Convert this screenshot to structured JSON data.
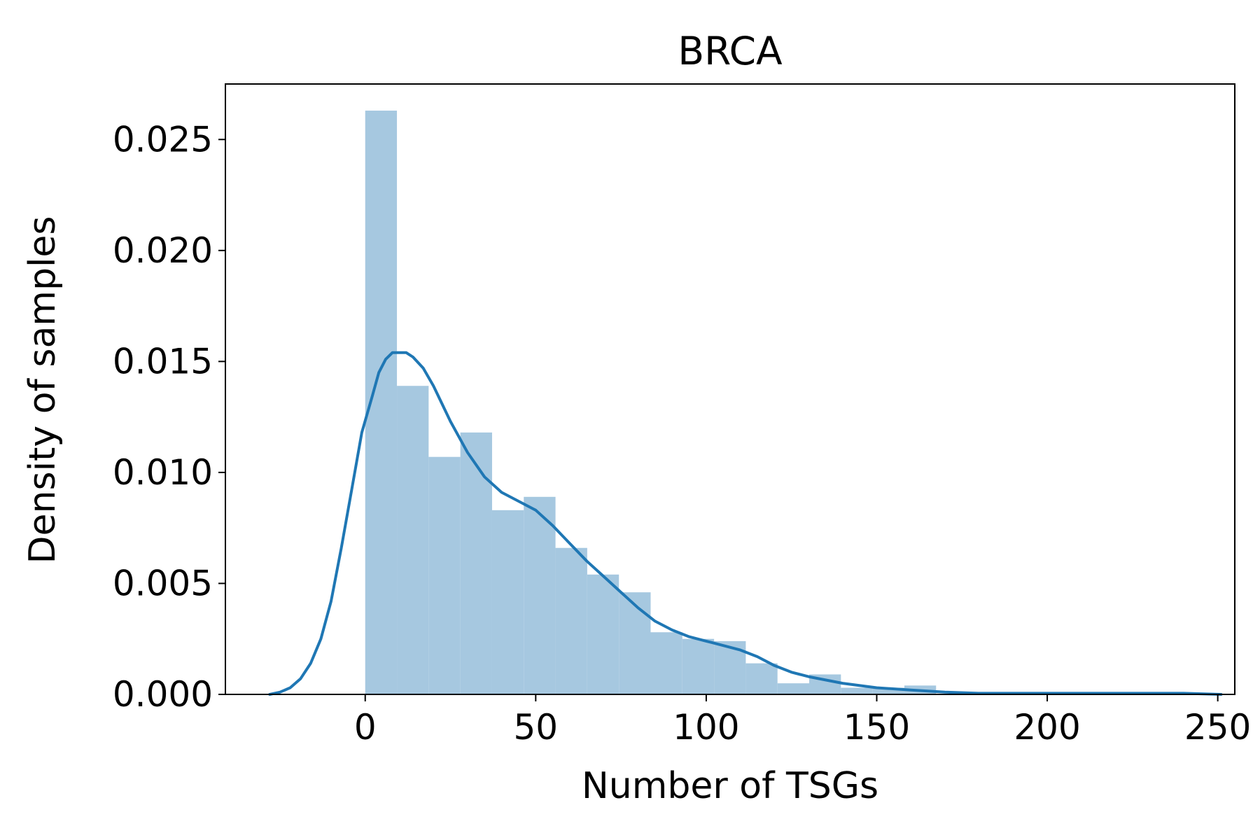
{
  "chart_data": {
    "type": "bar",
    "title": "BRCA",
    "xlabel": "Number of TSGs",
    "ylabel": "Density of samples",
    "xlim": [
      -41,
      255
    ],
    "ylim": [
      0,
      0.0275
    ],
    "x_ticks": [
      0,
      50,
      100,
      150,
      200,
      250
    ],
    "x_tick_labels": [
      "0",
      "50",
      "100",
      "150",
      "200",
      "250"
    ],
    "y_ticks": [
      0,
      0.005,
      0.01,
      0.015,
      0.02,
      0.025
    ],
    "y_tick_labels": [
      "0.000",
      "0.005",
      "0.010",
      "0.015",
      "0.020",
      "0.025"
    ],
    "grid": false,
    "histogram": {
      "name": "histogram",
      "color": "#a6c8e0",
      "bins": [
        {
          "x0": 0.0,
          "x1": 9.3,
          "value": 0.0263
        },
        {
          "x0": 9.3,
          "x1": 18.6,
          "value": 0.0139
        },
        {
          "x0": 18.6,
          "x1": 27.9,
          "value": 0.0107
        },
        {
          "x0": 27.9,
          "x1": 37.2,
          "value": 0.0118
        },
        {
          "x0": 37.2,
          "x1": 46.5,
          "value": 0.0083
        },
        {
          "x0": 46.5,
          "x1": 55.8,
          "value": 0.0089
        },
        {
          "x0": 55.8,
          "x1": 65.1,
          "value": 0.0066
        },
        {
          "x0": 65.1,
          "x1": 74.4,
          "value": 0.0054
        },
        {
          "x0": 74.4,
          "x1": 83.7,
          "value": 0.0046
        },
        {
          "x0": 83.7,
          "x1": 93.0,
          "value": 0.0028
        },
        {
          "x0": 93.0,
          "x1": 102.3,
          "value": 0.0025
        },
        {
          "x0": 102.3,
          "x1": 111.6,
          "value": 0.0024
        },
        {
          "x0": 111.6,
          "x1": 120.9,
          "value": 0.0014
        },
        {
          "x0": 120.9,
          "x1": 130.2,
          "value": 0.0005
        },
        {
          "x0": 130.2,
          "x1": 139.5,
          "value": 0.0009
        },
        {
          "x0": 139.5,
          "x1": 148.8,
          "value": 0.0003
        },
        {
          "x0": 148.8,
          "x1": 158.1,
          "value": 0.0003
        },
        {
          "x0": 158.1,
          "x1": 167.4,
          "value": 0.0004
        },
        {
          "x0": 167.4,
          "x1": 176.7,
          "value": 0.0
        },
        {
          "x0": 176.7,
          "x1": 186.0,
          "value": 0.0
        },
        {
          "x0": 186.0,
          "x1": 195.3,
          "value": 0.0
        },
        {
          "x0": 195.3,
          "x1": 204.6,
          "value": 0.0
        },
        {
          "x0": 204.6,
          "x1": 213.9,
          "value": 0.0
        },
        {
          "x0": 213.9,
          "x1": 223.2,
          "value": 0.0
        },
        {
          "x0": 223.2,
          "x1": 232.5,
          "value": 0.0
        },
        {
          "x0": 232.5,
          "x1": 241.8,
          "value": 0.0
        },
        {
          "x0": 241.8,
          "x1": 251.0,
          "value": 0.0
        }
      ]
    },
    "kde": {
      "name": "kde",
      "color": "#1f77b4",
      "x": [
        -28,
        -25,
        -22,
        -19,
        -16,
        -13,
        -10,
        -7,
        -4,
        -1,
        2,
        4,
        6,
        8,
        10,
        12,
        14,
        17,
        20,
        25,
        30,
        35,
        40,
        45,
        50,
        55,
        60,
        65,
        70,
        75,
        80,
        85,
        90,
        95,
        100,
        105,
        110,
        115,
        120,
        125,
        130,
        140,
        150,
        160,
        170,
        180,
        200,
        220,
        240,
        251
      ],
      "y": [
        0.0,
        0.0001,
        0.0003,
        0.0007,
        0.0014,
        0.0025,
        0.0042,
        0.0066,
        0.0092,
        0.0118,
        0.0134,
        0.0145,
        0.0151,
        0.0154,
        0.0154,
        0.0154,
        0.0152,
        0.0147,
        0.0139,
        0.0123,
        0.0109,
        0.0098,
        0.0091,
        0.0087,
        0.0083,
        0.0076,
        0.0068,
        0.006,
        0.0053,
        0.0046,
        0.0039,
        0.0033,
        0.0029,
        0.0026,
        0.0024,
        0.0022,
        0.002,
        0.0017,
        0.0013,
        0.001,
        0.0008,
        0.0005,
        0.0003,
        0.0002,
        0.0001,
        5e-05,
        5e-05,
        5e-05,
        5e-05,
        0.0
      ]
    }
  }
}
